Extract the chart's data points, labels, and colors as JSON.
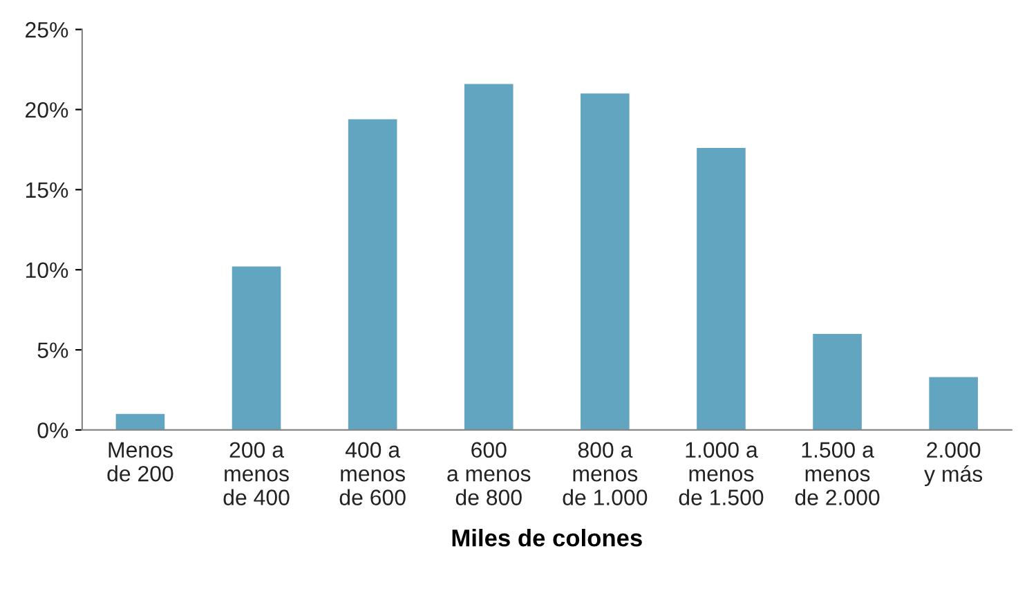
{
  "chart_data": {
    "type": "bar",
    "xlabel": "Miles de colones",
    "categories": [
      "Menos\nde 200",
      "200 a\nmenos\nde 400",
      "400 a\nmenos\nde 600",
      "600\na menos\nde 800",
      "800 a\nmenos\nde 1.000",
      "1.000 a\nmenos\nde 1.500",
      "1.500 a\nmenos\nde 2.000",
      "2.000\ny más"
    ],
    "values": [
      1.0,
      10.2,
      19.4,
      21.6,
      21.0,
      17.6,
      6.0,
      3.3
    ],
    "color": "#62a5c1",
    "ylim": [
      0,
      25
    ],
    "yticks": [
      {
        "value": 0,
        "label": "0%"
      },
      {
        "value": 5,
        "label": "5%"
      },
      {
        "value": 10,
        "label": "10%"
      },
      {
        "value": 15,
        "label": "15%"
      },
      {
        "value": 20,
        "label": "20%"
      },
      {
        "value": 25,
        "label": "25%"
      }
    ],
    "grid": false,
    "legend": false
  }
}
